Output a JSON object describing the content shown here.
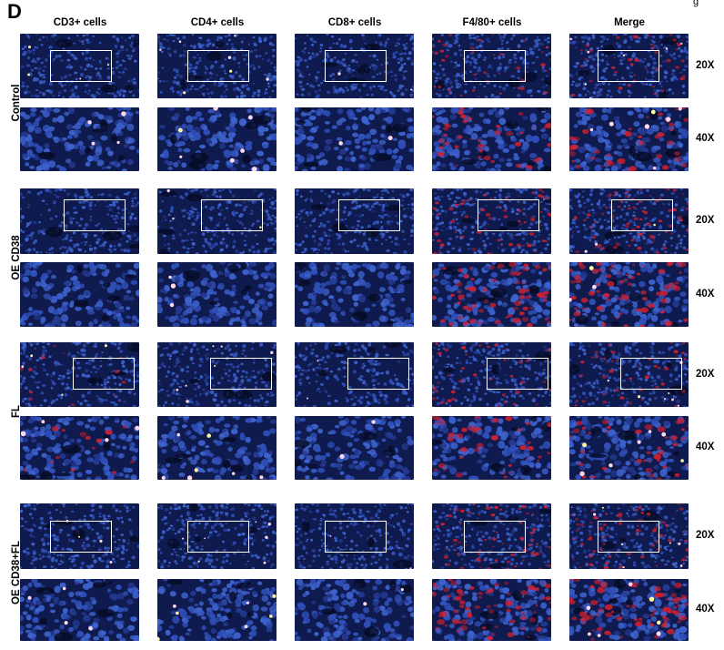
{
  "figure": {
    "panel_letter": "D",
    "corner_mark": "g"
  },
  "columns": [
    {
      "label": "CD3+ cells",
      "channel": "cd3"
    },
    {
      "label": "CD4+ cells",
      "channel": "cd4"
    },
    {
      "label": "CD8+ cells",
      "channel": "cd8"
    },
    {
      "label": "F4/80+ cells",
      "channel": "f480"
    },
    {
      "label": "Merge",
      "channel": "merge"
    }
  ],
  "groups": [
    {
      "label": "Control"
    },
    {
      "label": "OE CD38"
    },
    {
      "label": "FL"
    },
    {
      "label": "OE CD38+FL"
    }
  ],
  "magnifications": {
    "low": "20X",
    "high": "40X"
  },
  "colors": {
    "nuclei_dapi": "#2f4fb8",
    "background": "#0f1a4e",
    "f480_marker": "#d42030",
    "t_cell_marker": "#ffd9e8",
    "roi_box": "#ffffff"
  }
}
